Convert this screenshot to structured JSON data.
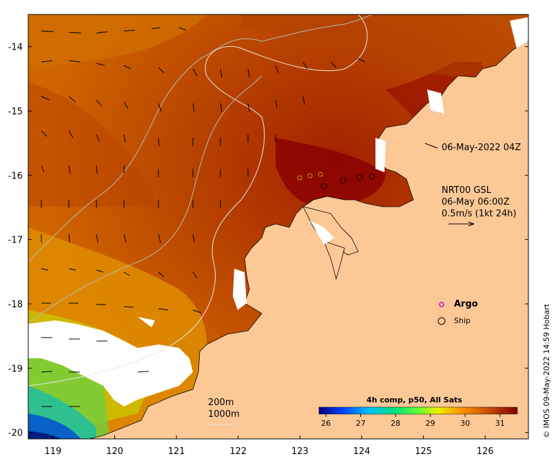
{
  "map": {
    "timestamp_label": "06-May-2022 04Z",
    "current_legend": {
      "title": "NRT00 GSL",
      "time": "06-May 06:00Z",
      "scale": "0.5m/s (1kt 24h)"
    },
    "argo_label": "Argo",
    "ship_label": "Ship",
    "isobath_labels": [
      "200m",
      "1000m"
    ],
    "credit": "© IMOS 09-May-2022 14:59 Hobart",
    "x_ticks": [
      "119",
      "120",
      "121",
      "122",
      "123",
      "124",
      "125",
      "126"
    ],
    "y_ticks": [
      "-14",
      "-15",
      "-16",
      "-17",
      "-18",
      "-19",
      "-20"
    ],
    "lon_range": [
      118.6,
      126.7
    ],
    "lat_range": [
      -20.1,
      -13.5
    ],
    "colorbar": {
      "title": "4h comp, p50, All Sats",
      "ticks": [
        "26",
        "27",
        "28",
        "29",
        "30",
        "31"
      ],
      "range": [
        25.8,
        31.5
      ]
    },
    "colors": {
      "land": "#fcc896",
      "cloud": "#ffffff",
      "argo": "#d000d0"
    }
  }
}
